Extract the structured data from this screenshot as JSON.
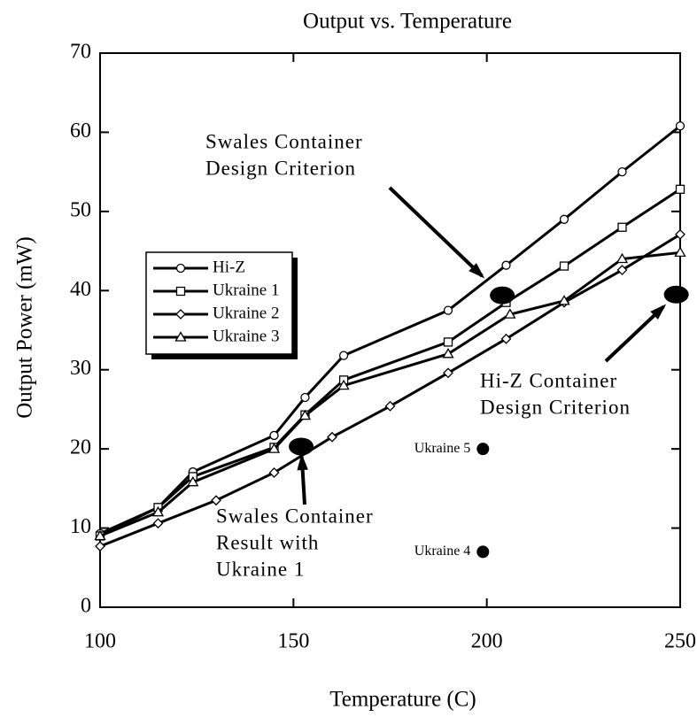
{
  "chart_data": {
    "type": "line",
    "title": "Output vs. Temperature",
    "x_label": "Temperature (C)",
    "y_label": "Output Power (mW)",
    "xlim": [
      100,
      250
    ],
    "xticks": [
      100,
      150,
      200,
      250
    ],
    "ylim": [
      0,
      70
    ],
    "yticks": [
      0,
      10,
      20,
      30,
      40,
      50,
      60,
      70
    ],
    "series": [
      {
        "name": "Hi-Z",
        "marker": "circle",
        "color": "#000000",
        "x": [
          100,
          115,
          124,
          145,
          153,
          163,
          190,
          205,
          220,
          235,
          250
        ],
        "values": [
          9.3,
          12.6,
          17.1,
          21.7,
          26.5,
          31.8,
          37.5,
          43.2,
          49,
          55,
          60.8
        ]
      },
      {
        "name": "Ukraine 1",
        "marker": "square",
        "color": "#000000",
        "x": [
          100,
          115,
          124,
          145,
          153,
          163,
          190,
          205,
          220,
          235,
          250
        ],
        "values": [
          9,
          12.6,
          16.5,
          20.2,
          24.3,
          28.7,
          33.5,
          38.5,
          43.1,
          48,
          52.8
        ]
      },
      {
        "name": "Ukraine 2",
        "marker": "diamond",
        "color": "#000000",
        "x": [
          100,
          115,
          130,
          145,
          160,
          175,
          190,
          205,
          220,
          235,
          250
        ],
        "values": [
          7.7,
          10.6,
          13.5,
          17,
          21.5,
          25.4,
          29.6,
          33.9,
          38.5,
          42.6,
          47.1
        ]
      },
      {
        "name": "Ukraine 3",
        "marker": "triangle",
        "color": "#000000",
        "x": [
          100,
          115,
          124,
          145,
          153,
          163,
          190,
          206,
          220,
          235,
          250
        ],
        "values": [
          9,
          12,
          15.8,
          20,
          24.2,
          28,
          32,
          37,
          38.7,
          44,
          44.8
        ]
      }
    ],
    "points": [
      {
        "label": "Ukraine 5",
        "x": 199,
        "y": 20
      },
      {
        "label": "Ukraine 4",
        "x": 199,
        "y": 7
      }
    ],
    "criteria": [
      {
        "lines": [
          "Swales Container",
          "Design Criterion"
        ],
        "x": 204,
        "y": 39.4
      },
      {
        "lines": [
          "Hi-Z Container",
          "Design Criterion"
        ],
        "x": 249,
        "y": 39.5
      },
      {
        "lines": [
          "Swales Container",
          "Result with",
          "Ukraine 1"
        ],
        "x": 152,
        "y": 20.3
      }
    ]
  }
}
